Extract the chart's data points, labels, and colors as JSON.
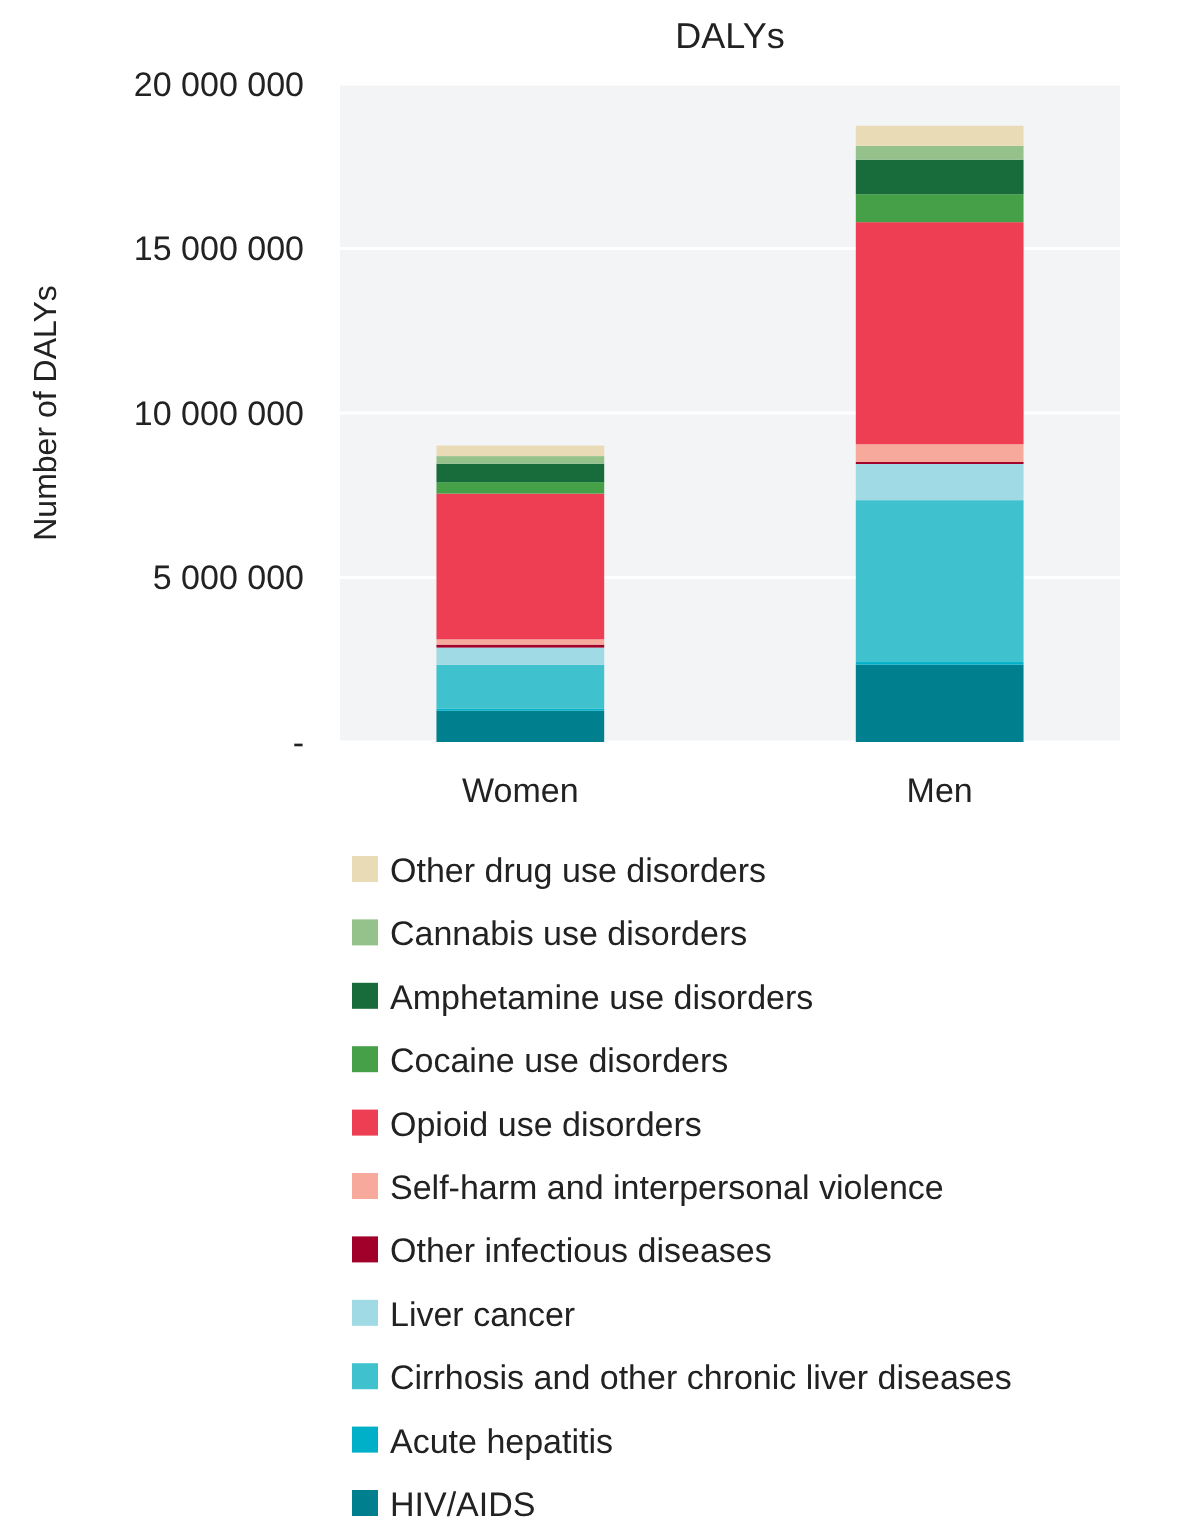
{
  "chart_data": {
    "type": "bar",
    "title": "DALYs",
    "ylabel": "Number of DALYs",
    "categories": [
      "Women",
      "Men"
    ],
    "stacked": true,
    "grid": "y",
    "legend": "bottom",
    "ylim": [
      0,
      20000000
    ],
    "yticks": [
      {
        "value": 0,
        "label": "-"
      },
      {
        "value": 5000000,
        "label": "5 000 000"
      },
      {
        "value": 10000000,
        "label": "10 000 000"
      },
      {
        "value": 15000000,
        "label": "15 000 000"
      },
      {
        "value": 20000000,
        "label": "20 000 000"
      }
    ],
    "series": [
      {
        "name": "HIV/AIDS",
        "color": "#00808f",
        "values": [
          950000,
          2350000
        ]
      },
      {
        "name": "Acute hepatitis",
        "color": "#00b0c8",
        "values": [
          60000,
          80000
        ]
      },
      {
        "name": "Cirrhosis and other chronic liver diseases",
        "color": "#3fc1ce",
        "values": [
          1340000,
          4920000
        ]
      },
      {
        "name": "Liver cancer",
        "color": "#a0dae5",
        "values": [
          520000,
          1100000
        ]
      },
      {
        "name": "Other infectious diseases",
        "color": "#a0002a",
        "values": [
          90000,
          60000
        ]
      },
      {
        "name": "Self-harm and interpersonal violence",
        "color": "#f7aa9b",
        "values": [
          160000,
          540000
        ]
      },
      {
        "name": "Opioid use disorders",
        "color": "#ee3e54",
        "values": [
          4430000,
          6750000
        ]
      },
      {
        "name": "Cocaine use disorders",
        "color": "#45a048",
        "values": [
          350000,
          850000
        ]
      },
      {
        "name": "Amphetamine use disorders",
        "color": "#186b3a",
        "values": [
          560000,
          1050000
        ]
      },
      {
        "name": "Cannabis use disorders",
        "color": "#95c28a",
        "values": [
          230000,
          420000
        ]
      },
      {
        "name": "Other drug use disorders",
        "color": "#e8dbb6",
        "values": [
          320000,
          610000
        ]
      }
    ]
  }
}
